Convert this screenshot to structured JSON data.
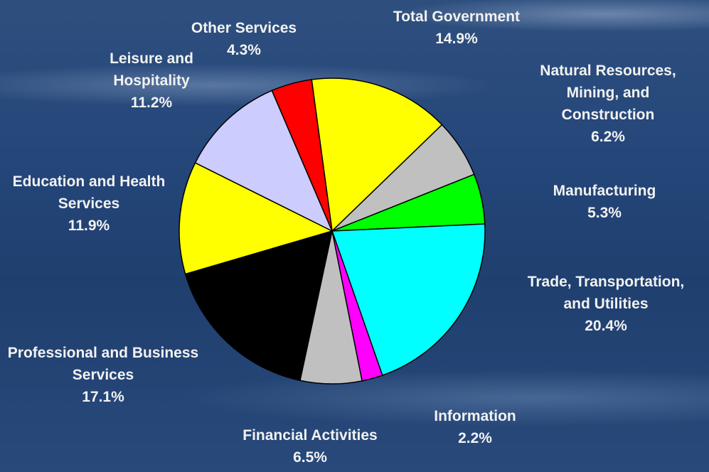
{
  "chart_data": {
    "type": "pie",
    "categories": [
      "Total Government",
      "Natural Resources, Mining, and Construction",
      "Manufacturing",
      "Trade, Transportation, and Utilities",
      "Information",
      "Financial Activities",
      "Professional and Business Services",
      "Education and Health Services",
      "Leisure and Hospitality",
      "Other Services"
    ],
    "values": [
      14.9,
      6.2,
      5.3,
      20.4,
      2.2,
      6.5,
      17.1,
      11.9,
      11.2,
      4.3
    ],
    "value_labels": [
      "14.9%",
      "6.2%",
      "5.3%",
      "20.4%",
      "2.2%",
      "6.5%",
      "17.1%",
      "11.9%",
      "11.2%",
      "4.3%"
    ],
    "colors": [
      "#ffff00",
      "#c0c0c0",
      "#00ff00",
      "#00ffff",
      "#ff00ff",
      "#c0c0c0",
      "#000000",
      "#ffff00",
      "#ccccff",
      "#ff0000"
    ]
  }
}
